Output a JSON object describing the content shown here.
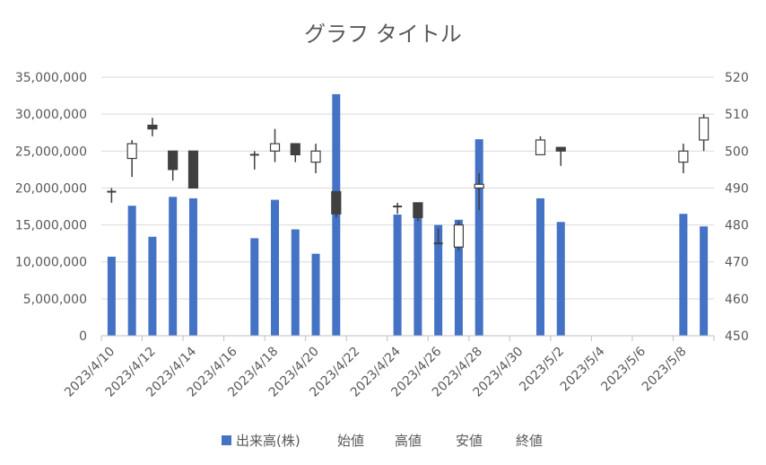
{
  "chart_data": {
    "type": "bar",
    "title": "グラフ タイトル",
    "legend_position": "bottom",
    "grid": true,
    "left_axis": {
      "ylim": [
        0,
        35000000
      ],
      "ticks": [
        0,
        5000000,
        10000000,
        15000000,
        20000000,
        25000000,
        30000000,
        35000000
      ],
      "tick_labels": [
        "0",
        "5,000,000",
        "10,000,000",
        "15,000,000",
        "20,000,000",
        "25,000,000",
        "30,000,000",
        "35,000,000"
      ]
    },
    "right_axis": {
      "ylim": [
        450,
        520
      ],
      "ticks": [
        450,
        460,
        470,
        480,
        490,
        500,
        510,
        520
      ],
      "tick_labels": [
        "450",
        "460",
        "470",
        "480",
        "490",
        "500",
        "510",
        "520"
      ]
    },
    "x_axis": {
      "start_date": "2023/4/10",
      "end_date": "2023/5/9",
      "tick_labels": [
        "2023/4/10",
        "2023/4/12",
        "2023/4/14",
        "2023/4/16",
        "2023/4/18",
        "2023/4/20",
        "2023/4/22",
        "2023/4/24",
        "2023/4/26",
        "2023/4/28",
        "2023/4/30",
        "2023/5/2",
        "2023/5/4",
        "2023/5/6",
        "2023/5/8"
      ]
    },
    "legend": [
      {
        "name": "出来高(株)",
        "marker": "square"
      },
      {
        "name": "始値",
        "marker": "none"
      },
      {
        "name": "高値",
        "marker": "none"
      },
      {
        "name": "安値",
        "marker": "none"
      },
      {
        "name": "終値",
        "marker": "none"
      }
    ],
    "colors": {
      "volume": "#4472C4",
      "down_candle": "#404040",
      "up_candle": "#ffffff",
      "wick": "#404040",
      "grid": "#d9d9d9",
      "text": "#595959"
    },
    "series": [
      {
        "date": "2023/4/10",
        "volume": 10700000,
        "open": 489,
        "high": 490,
        "low": 486,
        "close": 489
      },
      {
        "date": "2023/4/11",
        "volume": 17600000,
        "open": 498,
        "high": 503,
        "low": 493,
        "close": 502
      },
      {
        "date": "2023/4/12",
        "volume": 13400000,
        "open": 507,
        "high": 509,
        "low": 504,
        "close": 506
      },
      {
        "date": "2023/4/13",
        "volume": 18800000,
        "open": 500,
        "high": 500,
        "low": 492,
        "close": 495
      },
      {
        "date": "2023/4/14",
        "volume": 18600000,
        "open": 500,
        "high": 500,
        "low": 490,
        "close": 490
      },
      {
        "date": "2023/4/17",
        "volume": 13200000,
        "open": 499,
        "high": 500,
        "low": 495,
        "close": 499
      },
      {
        "date": "2023/4/18",
        "volume": 18400000,
        "open": 500,
        "high": 506,
        "low": 497,
        "close": 502
      },
      {
        "date": "2023/4/19",
        "volume": 14400000,
        "open": 502,
        "high": 502,
        "low": 497,
        "close": 499
      },
      {
        "date": "2023/4/20",
        "volume": 11100000,
        "open": 497,
        "high": 502,
        "low": 494,
        "close": 500
      },
      {
        "date": "2023/4/21",
        "volume": 32700000,
        "open": 489,
        "high": 489,
        "low": 482,
        "close": 483
      },
      {
        "date": "2023/4/24",
        "volume": 16400000,
        "open": 485,
        "high": 486,
        "low": 483,
        "close": 485
      },
      {
        "date": "2023/4/25",
        "volume": 16000000,
        "open": 486,
        "high": 486,
        "low": 481,
        "close": 482
      },
      {
        "date": "2023/4/26",
        "volume": 15000000,
        "open": 475,
        "high": 479,
        "low": 475,
        "close": 475
      },
      {
        "date": "2023/4/27",
        "volume": 15700000,
        "open": 474,
        "high": 481,
        "low": 473,
        "close": 480
      },
      {
        "date": "2023/4/28",
        "volume": 26600000,
        "open": 490,
        "high": 494,
        "low": 484,
        "close": 491
      },
      {
        "date": "2023/5/1",
        "volume": 18600000,
        "open": 499,
        "high": 504,
        "low": 499,
        "close": 503
      },
      {
        "date": "2023/5/2",
        "volume": 15400000,
        "open": 501,
        "high": 501,
        "low": 496,
        "close": 500
      },
      {
        "date": "2023/5/8",
        "volume": 16500000,
        "open": 497,
        "high": 502,
        "low": 494,
        "close": 500
      },
      {
        "date": "2023/5/9",
        "volume": 14800000,
        "open": 503,
        "high": 510,
        "low": 500,
        "close": 509
      }
    ]
  }
}
